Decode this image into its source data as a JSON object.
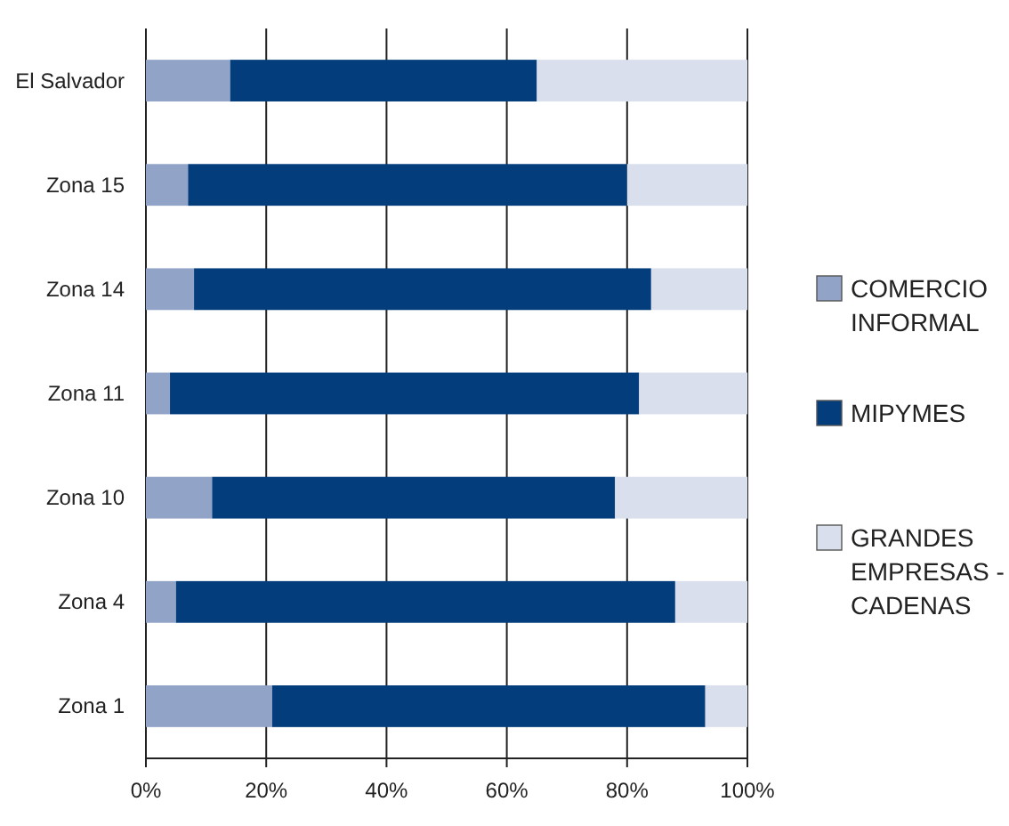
{
  "chart_data": {
    "type": "bar",
    "orientation": "horizontal",
    "stacked": true,
    "categories": [
      "El Salvador",
      "Zona 15",
      "Zona 14",
      "Zona 11",
      "Zona 10",
      "Zona 4",
      "Zona 1"
    ],
    "series": [
      {
        "name": "COMERCIO INFORMAL",
        "color": "#91a3c6",
        "values": [
          14,
          7,
          8,
          4,
          11,
          5,
          21
        ]
      },
      {
        "name": "MIPYMES",
        "color": "#033d7c",
        "values": [
          51,
          73,
          76,
          78,
          67,
          83,
          72
        ]
      },
      {
        "name": "GRANDES EMPRESAS - CADENAS",
        "color": "#d9dfed",
        "values": [
          35,
          20,
          16,
          18,
          22,
          12,
          7
        ]
      }
    ],
    "xlim": [
      0,
      100
    ],
    "xticks": [
      {
        "value": 0,
        "label": "0%"
      },
      {
        "value": 20,
        "label": "20%"
      },
      {
        "value": 40,
        "label": "40%"
      },
      {
        "value": 60,
        "label": "60%"
      },
      {
        "value": 80,
        "label": "80%"
      },
      {
        "value": 100,
        "label": "100%"
      }
    ],
    "grid": "x",
    "legend": "right"
  }
}
